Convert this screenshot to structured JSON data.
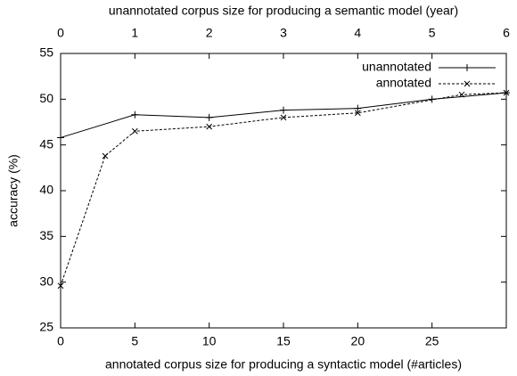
{
  "chart_data": {
    "type": "line",
    "xlabel": "annotated corpus size for producing a syntactic model (#articles)",
    "x2label": "unannotated corpus size for producing a semantic model (year)",
    "ylabel": "accuracy (%)",
    "xlim": [
      0,
      30
    ],
    "xticks": [
      0,
      5,
      10,
      15,
      20,
      25
    ],
    "x2lim": [
      0,
      6
    ],
    "x2ticks": [
      0,
      1,
      2,
      3,
      4,
      5,
      6
    ],
    "ylim": [
      25,
      55
    ],
    "yticks": [
      25,
      30,
      35,
      40,
      45,
      50,
      55
    ],
    "legend": "upper right",
    "series": [
      {
        "name": "unannotated",
        "color": "#000000",
        "axis": "x2",
        "dash": false,
        "marker": "plus",
        "x": [
          0,
          1,
          2,
          3,
          4,
          5,
          6
        ],
        "values": [
          45.8,
          48.3,
          48.0,
          48.8,
          49.0,
          50.0,
          50.7
        ]
      },
      {
        "name": "annotated",
        "color": "#000000",
        "axis": "x",
        "dash": true,
        "marker": "cross",
        "x": [
          0,
          3,
          5,
          10,
          15,
          20,
          27,
          30
        ],
        "values": [
          29.6,
          43.8,
          46.5,
          47.0,
          48.0,
          48.5,
          50.5,
          50.7
        ]
      }
    ]
  }
}
